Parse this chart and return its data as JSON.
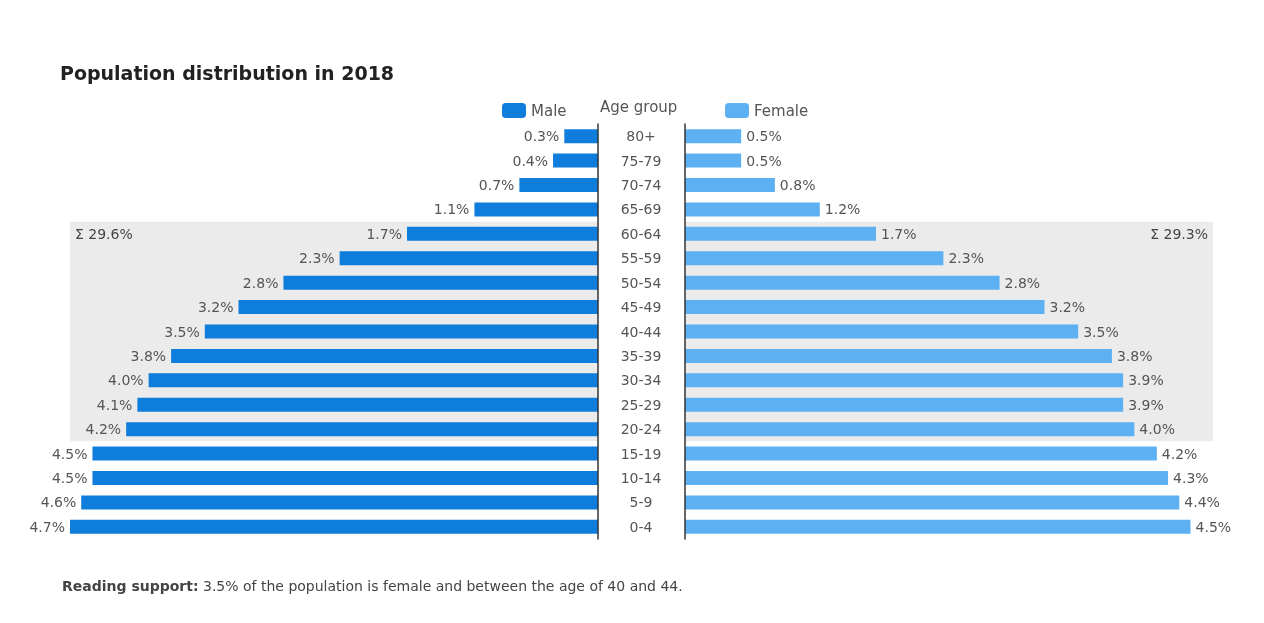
{
  "chart_data": [
    {
      "type": "bar",
      "orientation": "horizontal",
      "title": "Population distribution in 2018",
      "ylabel": "Age group",
      "categories": [
        "80+",
        "75-79",
        "70-74",
        "65-69",
        "60-64",
        "55-59",
        "50-54",
        "45-49",
        "40-44",
        "35-39",
        "30-34",
        "25-29",
        "20-24",
        "15-19",
        "10-14",
        "5-9",
        "0-4"
      ],
      "series": [
        {
          "name": "Male",
          "color": "#0f7ddb",
          "values": [
            0.3,
            0.4,
            0.7,
            1.1,
            1.7,
            2.3,
            2.8,
            3.2,
            3.5,
            3.8,
            4.0,
            4.1,
            4.2,
            4.5,
            4.5,
            4.6,
            4.7
          ],
          "value_labels": [
            "0.3%",
            "0.4%",
            "0.7%",
            "1.1%",
            "1.7%",
            "2.3%",
            "2.8%",
            "3.2%",
            "3.5%",
            "3.8%",
            "4.0%",
            "4.1%",
            "4.2%",
            "4.5%",
            "4.5%",
            "4.6%",
            "4.7%"
          ]
        }
      ],
      "bands": [
        {
          "axis": "y",
          "from": "60-64",
          "to": "20-24",
          "color": "#ebebeb",
          "label": "Σ 29.6%"
        }
      ],
      "annotations": [
        "Reading support: 3.5% of the population is female and between the age of 40 and 44."
      ],
      "legend": "top",
      "tick_labels": "y"
    },
    {
      "type": "bar",
      "orientation": "horizontal",
      "categories": [
        "80+",
        "75-79",
        "70-74",
        "65-69",
        "60-64",
        "55-59",
        "50-54",
        "45-49",
        "40-44",
        "35-39",
        "30-34",
        "25-29",
        "20-24",
        "15-19",
        "10-14",
        "5-9",
        "0-4"
      ],
      "series": [
        {
          "name": "Female",
          "color": "#5db0f2",
          "values": [
            0.5,
            0.5,
            0.8,
            1.2,
            1.7,
            2.3,
            2.8,
            3.2,
            3.5,
            3.8,
            3.9,
            3.9,
            4.0,
            4.2,
            4.3,
            4.4,
            4.5
          ],
          "value_labels": [
            "0.5%",
            "0.5%",
            "0.8%",
            "1.2%",
            "1.7%",
            "2.3%",
            "2.8%",
            "3.2%",
            "3.5%",
            "3.8%",
            "3.9%",
            "3.9%",
            "4.0%",
            "4.2%",
            "4.3%",
            "4.4%",
            "4.5%"
          ]
        }
      ],
      "bands": [
        {
          "axis": "y",
          "from": "60-64",
          "to": "20-24",
          "color": "#ebebeb",
          "label": "Σ 29.3%"
        }
      ],
      "legend": "top",
      "tick_labels": false
    }
  ]
}
